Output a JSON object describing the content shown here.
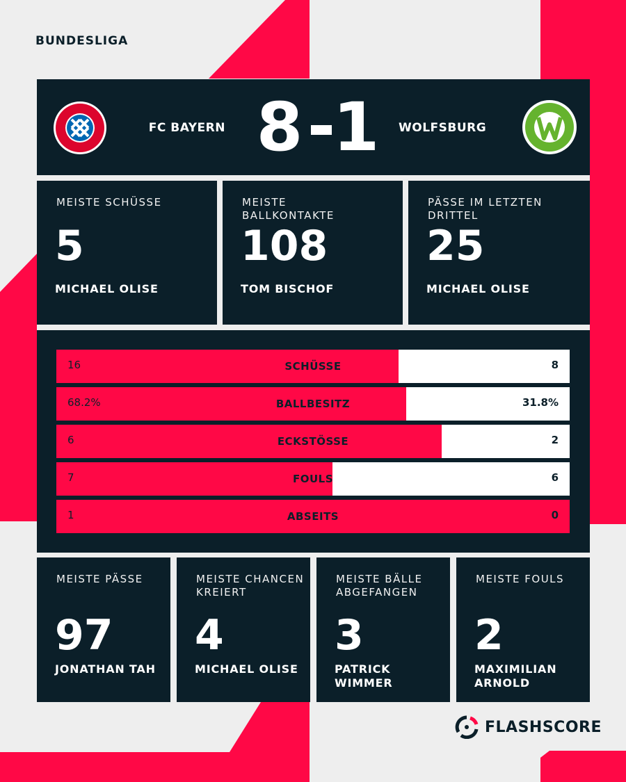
{
  "league": "BUNDESLIGA",
  "match": {
    "home": "FC BAYERN",
    "away": "WOLFSBURG",
    "home_score": 8,
    "away_score": 1
  },
  "top_stats": [
    {
      "title": "MEISTE SCHÜSSE",
      "value": 5,
      "player": "MICHAEL OLISE"
    },
    {
      "title": "MEISTE BALLKONTAKTE",
      "value": 108,
      "player": "TOM BISCHOF"
    },
    {
      "title": "PÄSSE IM LETZTEN DRITTEL",
      "value": 25,
      "player": "MICHAEL OLISE"
    }
  ],
  "stats": [
    {
      "label": "SCHÜSSE",
      "home": 16,
      "away": 8
    },
    {
      "label": "BALLBESITZ",
      "home": {
        "value": 68.2,
        "label": "68.2%"
      },
      "away": {
        "value": 31.8,
        "label": "31.8%"
      }
    },
    {
      "label": "ECKSTÖSSE",
      "home": 6,
      "away": 2
    },
    {
      "label": "FOULS",
      "home": 7,
      "away": 6
    },
    {
      "label": "ABSEITS",
      "home": 1,
      "away": 0
    }
  ],
  "bottom_stats": [
    {
      "title": "MEISTE PÄSSE",
      "value": 97,
      "player": "JONATHAN TAH"
    },
    {
      "title": "MEISTE CHANCEN KREIERT",
      "value": 4,
      "player": "MICHAEL OLISE"
    },
    {
      "title": "MEISTE BÄLLE ABGEFANGEN",
      "value": 3,
      "player": "PATRICK WIMMER"
    },
    {
      "title": "MEISTE FOULS",
      "value": 2,
      "player": "MAXIMILIAN ARNOLD"
    }
  ],
  "brand": "FLASHSCORE"
}
